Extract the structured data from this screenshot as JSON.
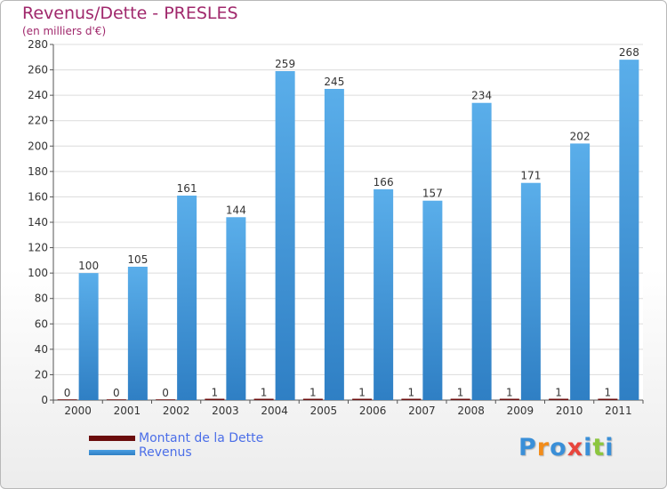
{
  "header": {
    "title": "Revenus/Dette - PRESLES",
    "subtitle": "(en milliers d'€)"
  },
  "chart_data": {
    "type": "bar",
    "title": "Revenus/Dette - PRESLES",
    "subtitle": "(en milliers d'€)",
    "categories": [
      "2000",
      "2001",
      "2002",
      "2003",
      "2004",
      "2005",
      "2006",
      "2007",
      "2008",
      "2009",
      "2010",
      "2011"
    ],
    "series": [
      {
        "name": "Montant de la Dette",
        "values": [
          0,
          0,
          0,
          1,
          1,
          1,
          1,
          1,
          1,
          1,
          1,
          1
        ],
        "color": "#6b0d0d"
      },
      {
        "name": "Revenus",
        "values": [
          100,
          105,
          161,
          144,
          259,
          245,
          166,
          157,
          234,
          171,
          202,
          268
        ],
        "color": "#4a9fe3"
      }
    ],
    "ylim": [
      0,
      280
    ],
    "yticks": [
      0,
      20,
      40,
      60,
      80,
      100,
      120,
      140,
      160,
      180,
      200,
      220,
      240,
      260,
      280
    ],
    "grid": true,
    "legend": "bottom-left"
  },
  "legend": {
    "items": [
      {
        "label": "Montant de la Dette",
        "color": "#6b0d0d"
      },
      {
        "label": "Revenus",
        "color": "#4a9fe3"
      }
    ]
  },
  "logo": {
    "letters": [
      "P",
      "r",
      "o",
      "x",
      "i",
      "t",
      "i"
    ],
    "colors": [
      "#3a8fd8",
      "#f28c1a",
      "#3a8fd8",
      "#e8453c",
      "#3a8fd8",
      "#8cc63f",
      "#3a8fd8"
    ]
  }
}
